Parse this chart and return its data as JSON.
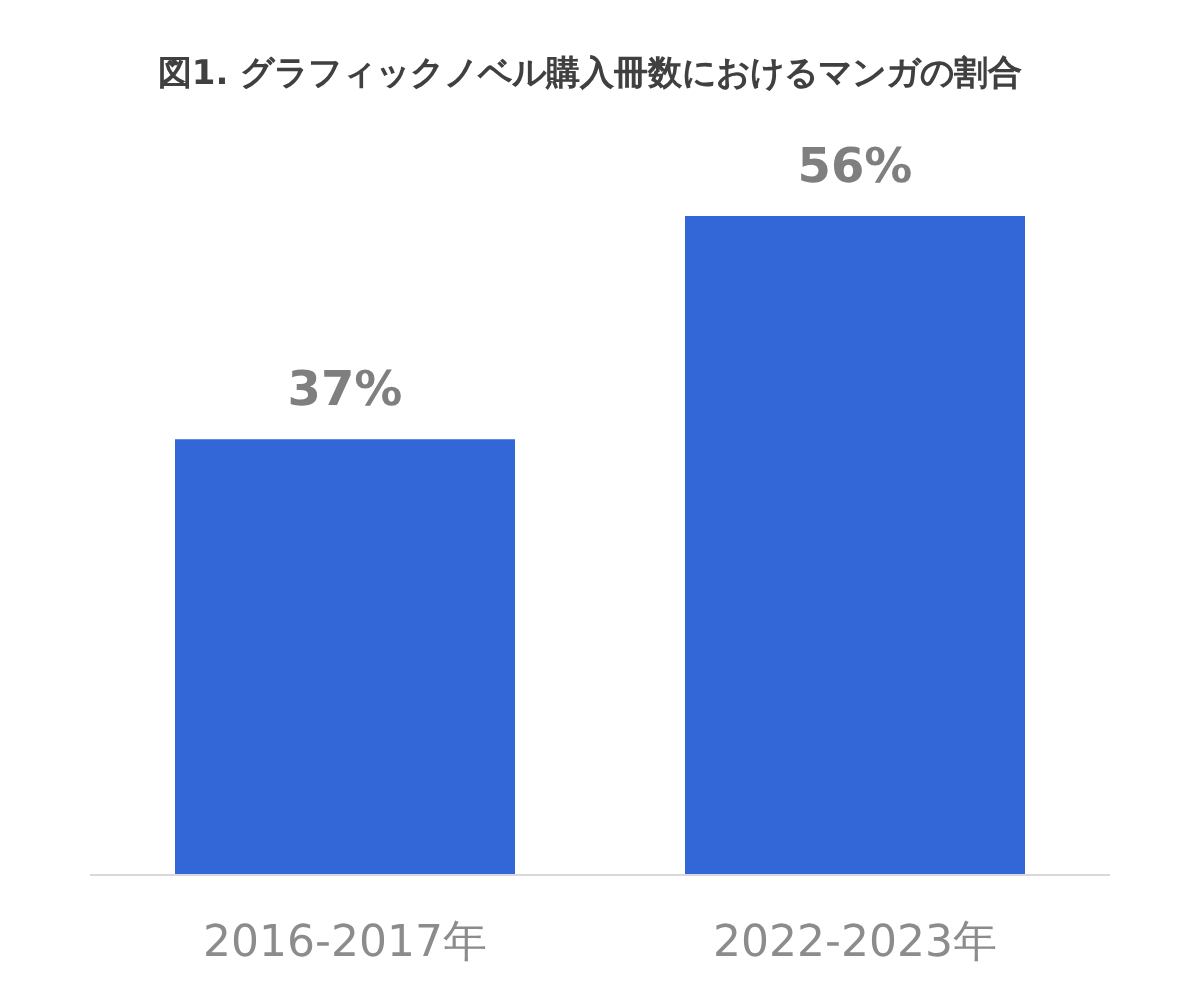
{
  "chart_data": {
    "type": "bar",
    "title": "図1. グラフィックノベル購入冊数におけるマンガの割合",
    "categories": [
      "2016-2017年",
      "2022-2023年"
    ],
    "values": [
      37,
      56
    ],
    "color": "#3366d6",
    "value_labels": [
      "37%",
      "56%"
    ]
  }
}
